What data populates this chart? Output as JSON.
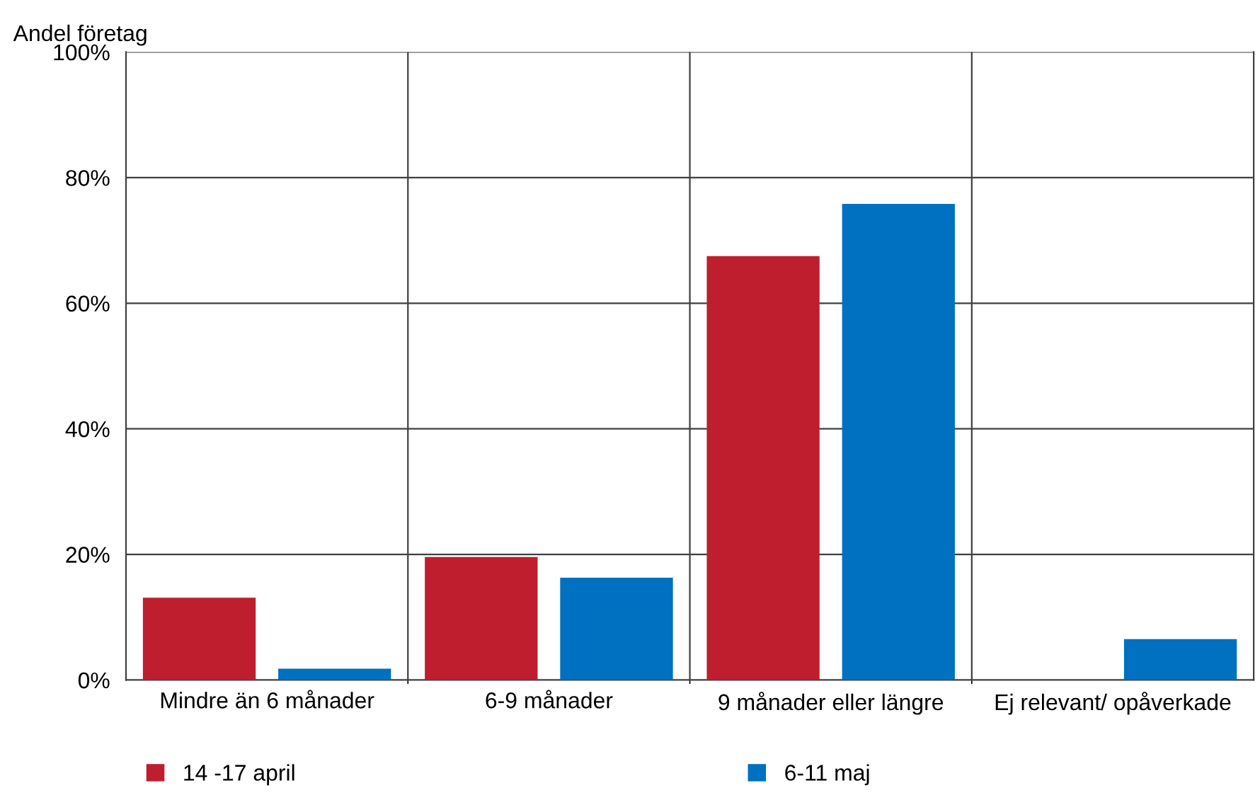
{
  "chart_data": {
    "type": "bar",
    "ylabel": "Andel företag",
    "categories": [
      "Mindre än 6 månader",
      "6-9 månader",
      "9 månader eller längre",
      "Ej relevant/ opåverkade"
    ],
    "series": [
      {
        "name": "14 -17 april",
        "color": "#be1e2d",
        "values": [
          13.1,
          19.6,
          67.5,
          0
        ]
      },
      {
        "name": "6-11 maj",
        "color": "#0070c0",
        "values": [
          1.8,
          16.3,
          75.8,
          6.5
        ]
      }
    ],
    "ylim": [
      0,
      100
    ],
    "yticks": [
      {
        "value": 0,
        "label": "0%"
      },
      {
        "value": 20,
        "label": "20%"
      },
      {
        "value": 40,
        "label": "40%"
      },
      {
        "value": 60,
        "label": "60%"
      },
      {
        "value": 80,
        "label": "80%"
      },
      {
        "value": 100,
        "label": "100%"
      }
    ],
    "grid": true,
    "legend": "bottom"
  }
}
